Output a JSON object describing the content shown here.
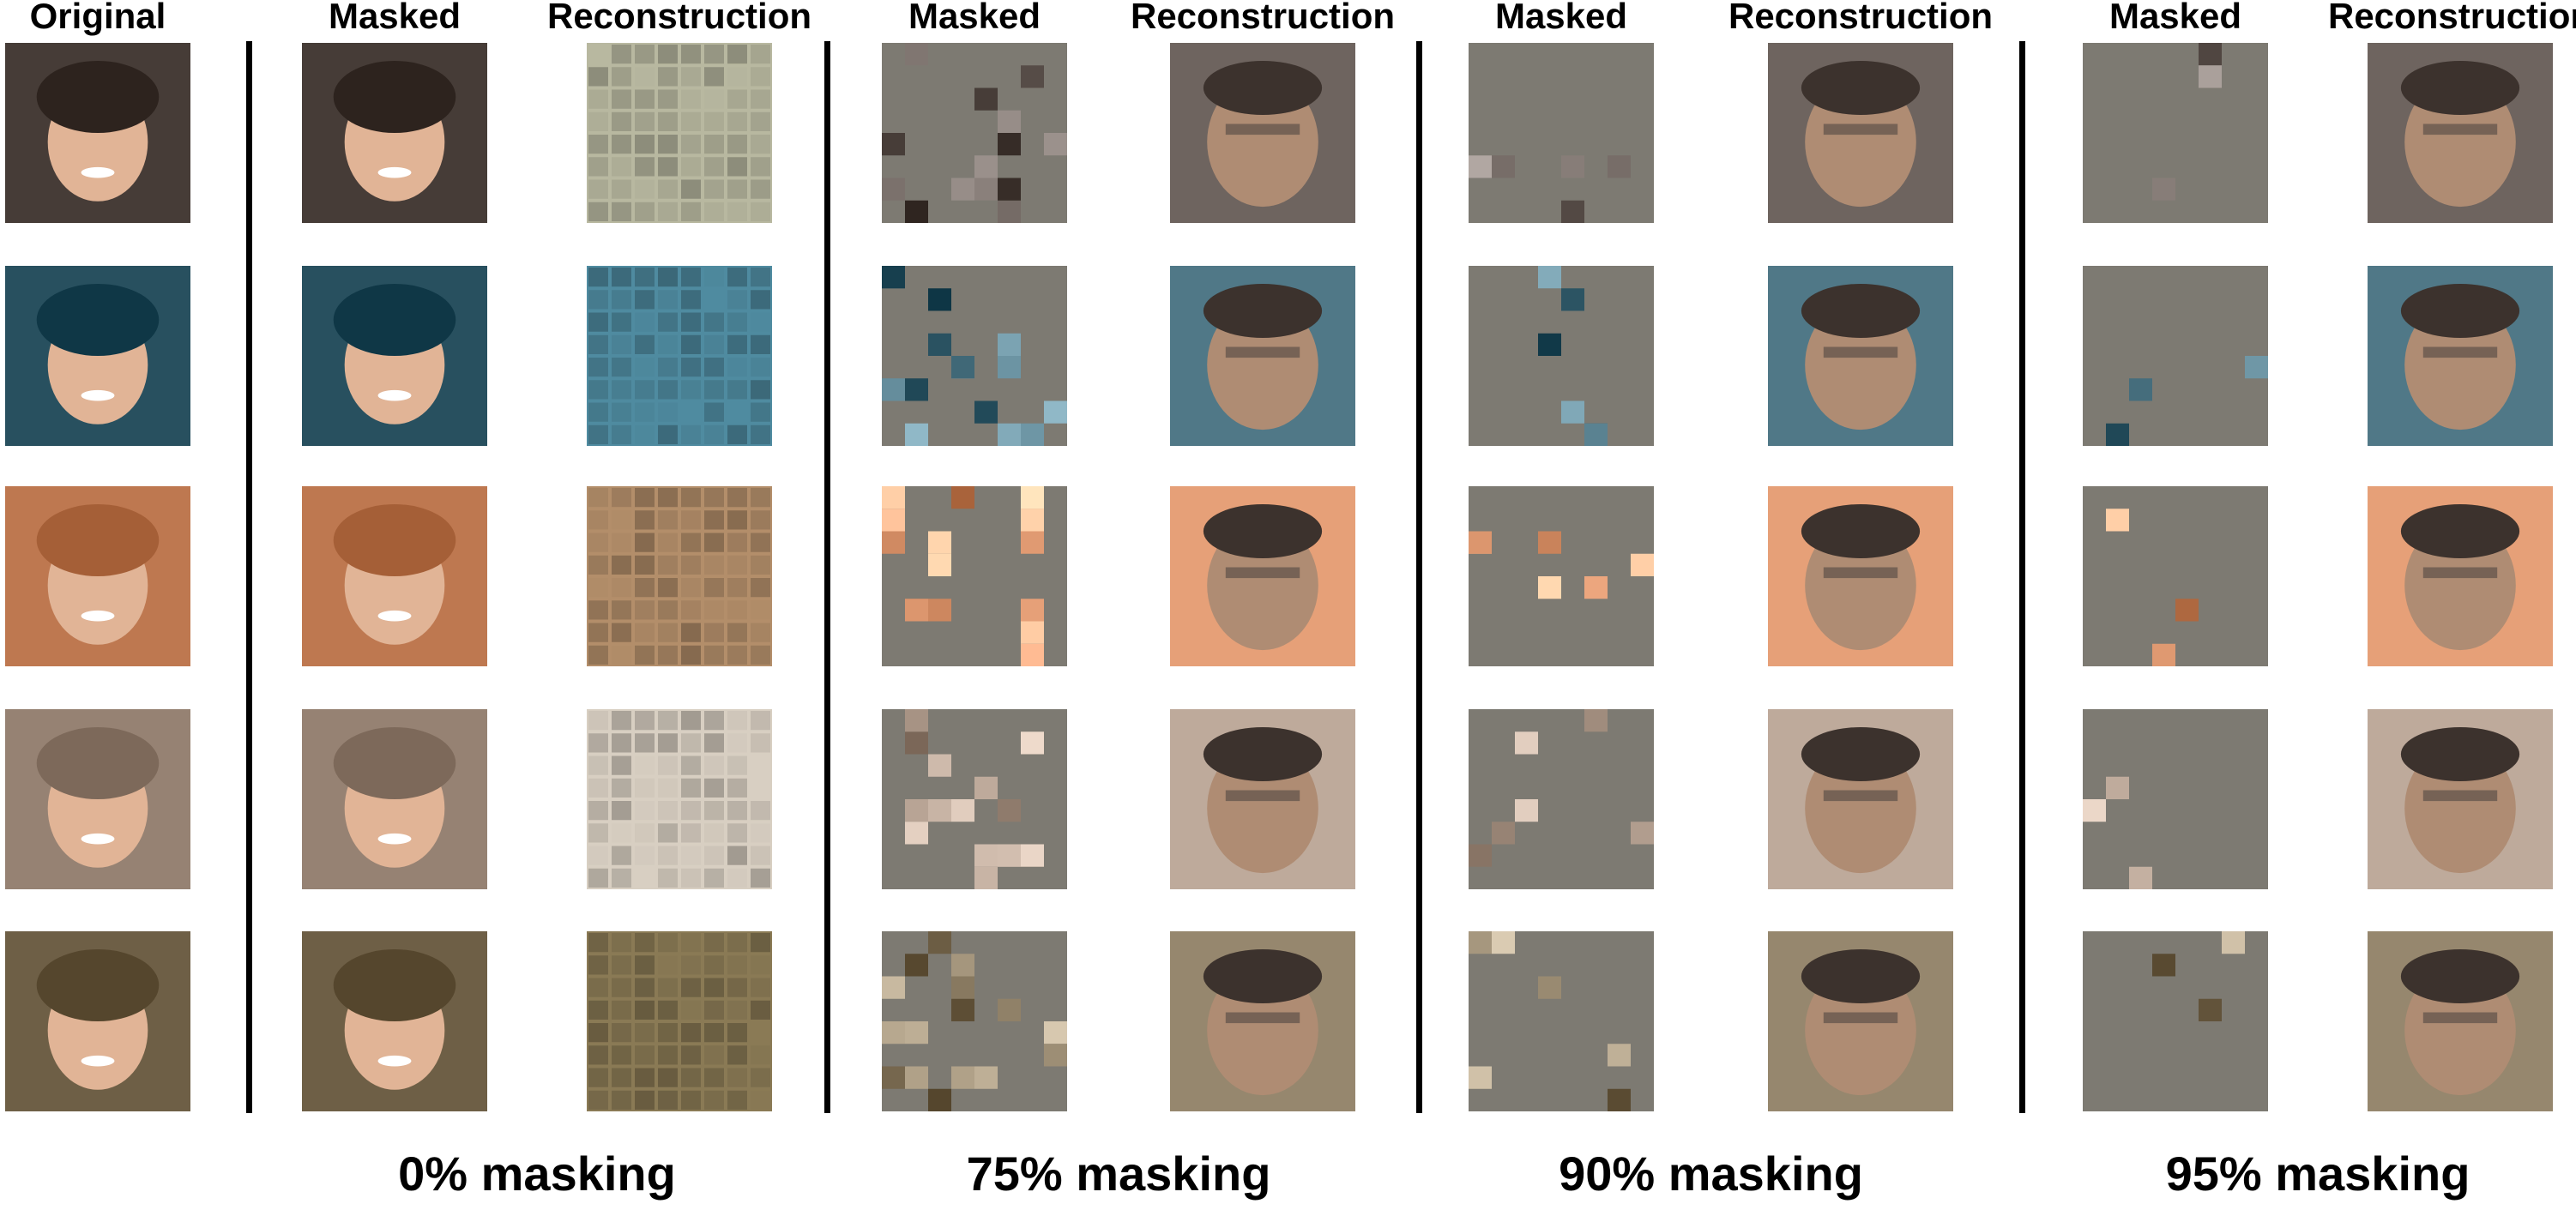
{
  "original_header": "Original",
  "groups": [
    {
      "masked_header": "Masked",
      "reconstruction_header": "Reconstruction",
      "caption": "0% masking"
    },
    {
      "masked_header": "Masked",
      "reconstruction_header": "Reconstruction",
      "caption": "75% masking"
    },
    {
      "masked_header": "Masked",
      "reconstruction_header": "Reconstruction",
      "caption": "90% masking"
    },
    {
      "masked_header": "Masked",
      "reconstruction_header": "Reconstruction",
      "caption": "95% masking"
    }
  ]
}
